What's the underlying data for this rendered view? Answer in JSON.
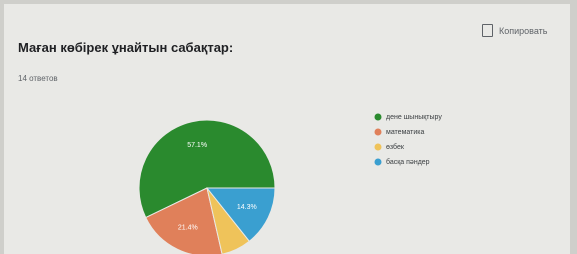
{
  "chart_data": {
    "type": "pie",
    "title": "Маған көбірек ұнайтын сабақтар:",
    "subtitle": "14 ответов",
    "button": "Копировать",
    "categories": [
      "дене шынықтыру",
      "математика",
      "өзбек",
      "басқа пәндер"
    ],
    "values": [
      57.1,
      21.4,
      7.1,
      14.3
    ],
    "value_labels": [
      "57.1%",
      "21.4%",
      null,
      "14.3%"
    ],
    "colors": [
      "#2a8a2e",
      "#e0805a",
      "#efc35a",
      "#3a9fd0"
    ],
    "legend": "right"
  }
}
